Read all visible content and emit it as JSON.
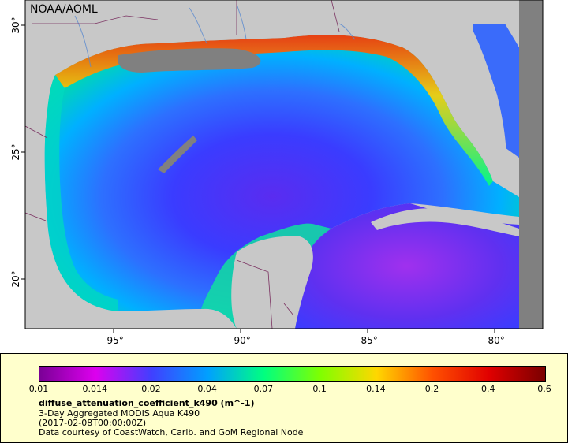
{
  "map": {
    "credit": "NOAA/AOML",
    "lon_ticks": [
      "-95°",
      "-90°",
      "-85°",
      "-80°"
    ],
    "lat_ticks": [
      "30°",
      "25°",
      "20°"
    ]
  },
  "legend": {
    "colorbar_labels": [
      "0.01",
      "0.014",
      "0.02",
      "0.04",
      "0.07",
      "0.1",
      "0.14",
      "0.2",
      "0.4",
      "0.6"
    ],
    "variable": "diffuse_attenuation_coefficient_k490 (m^-1)",
    "dataset": "3-Day Aggregated MODIS Aqua K490",
    "time": "(2017-02-08T00:00:00Z)",
    "courtesy": "Data courtesy of CoastWatch, Carib. and GoM Regional Node"
  },
  "colors": {
    "land": "#c8c8c8",
    "nodata": "#808080",
    "panel_bg": "#ffffcc",
    "colormap": [
      "#7a0096",
      "#dd00ee",
      "#4040ff",
      "#00a0ff",
      "#00ff80",
      "#80ff00",
      "#ffd700",
      "#ff5000",
      "#e00000",
      "#7a0000"
    ]
  }
}
